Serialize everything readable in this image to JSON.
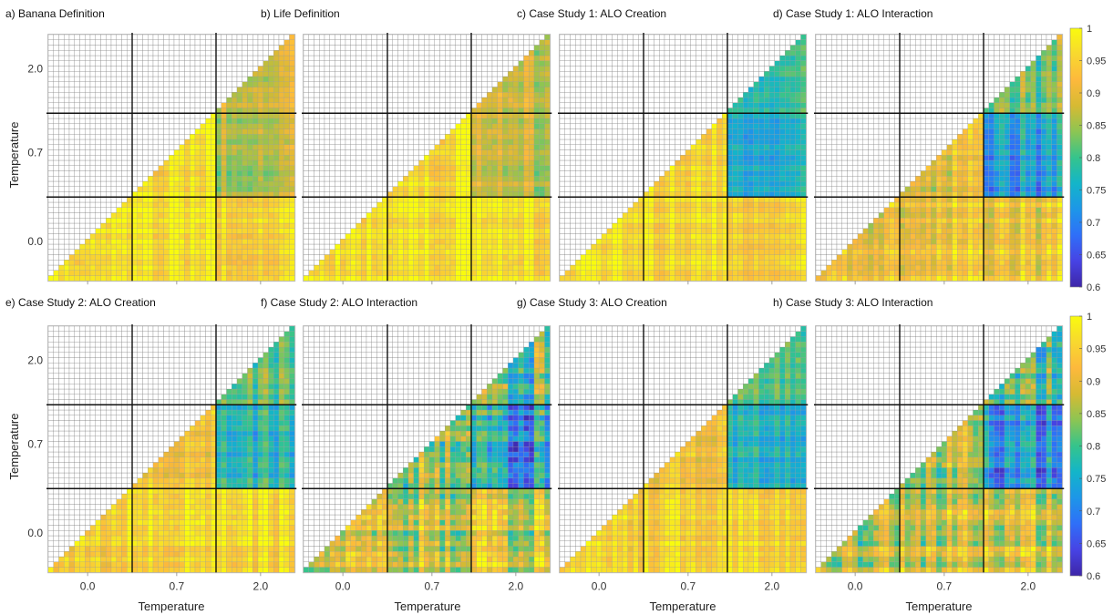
{
  "chart_data": {
    "type": "heatmap",
    "triangle": "upper-right",
    "grid": true,
    "colormap": [
      "#3e26a8",
      "#4743e4",
      "#2f6ff8",
      "#1d96e8",
      "#13b5c9",
      "#35c48c",
      "#8cc553",
      "#d6ba33",
      "#fdb93c",
      "#f8d82f",
      "#f9fb0e"
    ],
    "color_range": [
      0.6,
      1
    ],
    "colorbar_ticks": [
      "1",
      "0.95",
      "0.9",
      "0.85",
      "0.8",
      "0.75",
      "0.7",
      "0.65",
      "0.6"
    ],
    "xlabel": "Temperature",
    "ylabel": "Temperature",
    "tick_labels": [
      "0.0",
      "0.7",
      "2.0"
    ],
    "panels": [
      {
        "title": "a) Banana Definition",
        "zones": [
          [
            0.98,
            0.98,
            0.96
          ],
          [
            0.98,
            0.97,
            0.86
          ],
          [
            0.98,
            0.93,
            0.88
          ]
        ],
        "noise": 0.035
      },
      {
        "title": "b) Life Definition",
        "zones": [
          [
            0.98,
            0.98,
            0.97
          ],
          [
            0.98,
            0.97,
            0.87
          ],
          [
            0.98,
            0.93,
            0.88
          ]
        ],
        "noise": 0.035
      },
      {
        "title": "c) Case Study 1: ALO Creation",
        "zones": [
          [
            0.98,
            0.97,
            0.96
          ],
          [
            0.98,
            0.96,
            0.76
          ],
          [
            0.98,
            0.92,
            0.79
          ]
        ],
        "noise": 0.03
      },
      {
        "title": "d) Case Study 1: ALO Interaction",
        "zones": [
          [
            0.92,
            0.93,
            0.93
          ],
          [
            0.92,
            0.91,
            0.73
          ],
          [
            0.92,
            0.88,
            0.82
          ]
        ],
        "noise": 0.05
      },
      {
        "title": "e) Case Study 2: ALO Creation",
        "zones": [
          [
            0.95,
            0.96,
            0.96
          ],
          [
            0.95,
            0.93,
            0.77
          ],
          [
            0.95,
            0.91,
            0.81
          ]
        ],
        "noise": 0.04
      },
      {
        "title": "f) Case Study 2: ALO Interaction",
        "zones": [
          [
            0.86,
            0.88,
            0.9
          ],
          [
            0.86,
            0.86,
            0.74
          ],
          [
            0.86,
            0.84,
            0.82
          ]
        ],
        "noise": 0.08
      },
      {
        "title": "g) Case Study 3: ALO Creation",
        "zones": [
          [
            0.95,
            0.96,
            0.96
          ],
          [
            0.95,
            0.93,
            0.76
          ],
          [
            0.95,
            0.91,
            0.81
          ]
        ],
        "noise": 0.035
      },
      {
        "title": "h) Case Study 3: ALO Interaction",
        "zones": [
          [
            0.87,
            0.9,
            0.9
          ],
          [
            0.87,
            0.86,
            0.71
          ],
          [
            0.87,
            0.84,
            0.8
          ]
        ],
        "noise": 0.07
      }
    ]
  }
}
